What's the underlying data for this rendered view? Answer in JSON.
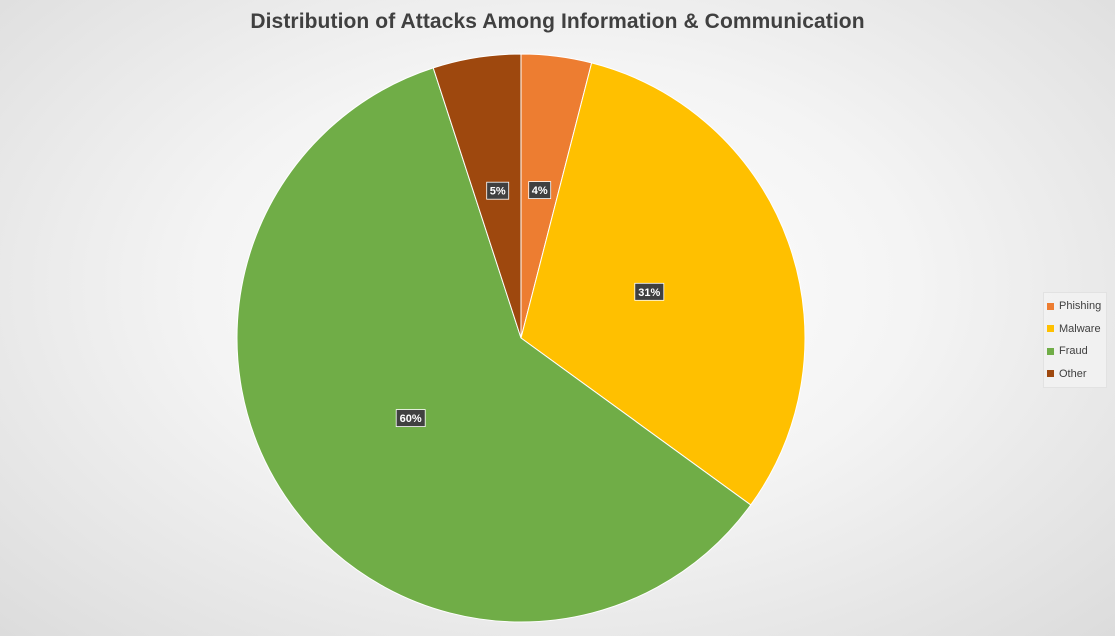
{
  "chart_data": {
    "type": "pie",
    "title": "Distribution of Attacks Among Information & Communication",
    "categories": [
      "Phishing",
      "Malware",
      "Fraud",
      "Other"
    ],
    "values": [
      4,
      31,
      60,
      5
    ],
    "labels": [
      "4%",
      "31%",
      "60%",
      "5%"
    ],
    "colors": [
      "#ED7D31",
      "#FFC000",
      "#70AD47",
      "#9E480E"
    ],
    "legend_position": "right",
    "start_angle": "12 o'clock, clockwise"
  }
}
